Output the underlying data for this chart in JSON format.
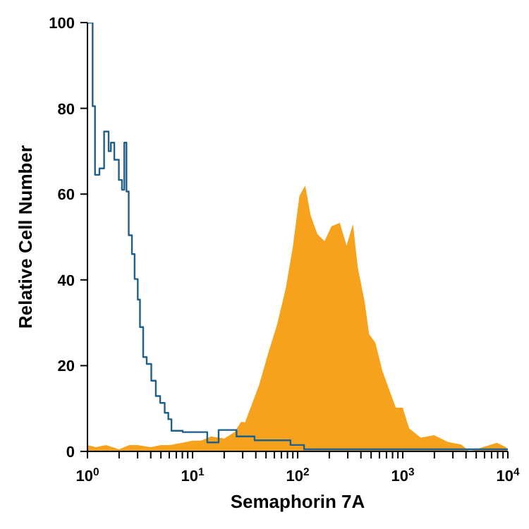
{
  "chart_data": {
    "type": "area",
    "xlabel": "Semaphorin 7A",
    "ylabel": "Relative Cell Number",
    "log": "x",
    "marker": "none",
    "xlim": [
      1,
      10000
    ],
    "xticks": [
      {
        "value": 1,
        "label": "10$^{0}$"
      },
      {
        "value": 2,
        "label": null
      },
      {
        "value": 3,
        "label": null
      },
      {
        "value": 4,
        "label": null
      },
      {
        "value": 5,
        "label": null
      },
      {
        "value": 6,
        "label": null
      },
      {
        "value": 7,
        "label": null
      },
      {
        "value": 8,
        "label": null
      },
      {
        "value": 9,
        "label": null
      },
      {
        "value": 10,
        "label": "10$^{1}$"
      },
      {
        "value": 20,
        "label": null
      },
      {
        "value": 30,
        "label": null
      },
      {
        "value": 40,
        "label": null
      },
      {
        "value": 50,
        "label": null
      },
      {
        "value": 60,
        "label": null
      },
      {
        "value": 70,
        "label": null
      },
      {
        "value": 80,
        "label": null
      },
      {
        "value": 90,
        "label": null
      },
      {
        "value": 100,
        "label": "10$^{2}$"
      },
      {
        "value": 200,
        "label": null
      },
      {
        "value": 300,
        "label": null
      },
      {
        "value": 400,
        "label": null
      },
      {
        "value": 500,
        "label": null
      },
      {
        "value": 600,
        "label": null
      },
      {
        "value": 700,
        "label": null
      },
      {
        "value": 800,
        "label": null
      },
      {
        "value": 900,
        "label": null
      },
      {
        "value": 1000,
        "label": "10$^{3}$"
      },
      {
        "value": 2000,
        "label": null
      },
      {
        "value": 3000,
        "label": null
      },
      {
        "value": 4000,
        "label": null
      },
      {
        "value": 5000,
        "label": null
      },
      {
        "value": 6000,
        "label": null
      },
      {
        "value": 7000,
        "label": null
      },
      {
        "value": 8000,
        "label": null
      },
      {
        "value": 9000,
        "label": null
      },
      {
        "value": 10000,
        "label": "10$^{4}$"
      }
    ],
    "ylim": [
      0,
      100
    ],
    "yticks": [
      0,
      20,
      40,
      60,
      80,
      100
    ],
    "series": [
      {
        "color": "#f7a21d",
        "x": [
          1,
          1.2,
          1.5,
          2,
          2.5,
          3,
          4,
          5,
          6,
          8,
          10,
          12,
          15,
          20,
          25,
          29,
          31.6,
          43,
          52,
          63.6,
          77,
          90,
          104,
          118,
          133,
          154,
          180,
          210,
          252,
          292,
          336,
          373,
          435,
          478,
          550,
          640,
          740,
          860,
          1000,
          1150,
          1480,
          1990,
          2680,
          3600,
          4320,
          7870,
          9600,
          10000
        ],
        "values": [
          1.5,
          1,
          1.5,
          0.5,
          1.5,
          1.5,
          1,
          1.5,
          1.5,
          2,
          2.5,
          2.5,
          3.5,
          3,
          4.5,
          6.9,
          6.8,
          15.5,
          22.6,
          29.5,
          38,
          47.7,
          59.6,
          62,
          55,
          50.7,
          49,
          52.5,
          53.3,
          48,
          53,
          43,
          34.8,
          27.4,
          25.3,
          18.8,
          14.5,
          10.2,
          10.2,
          5.4,
          3.2,
          3.8,
          2.2,
          1.6,
          0,
          2,
          1,
          0
        ]
      },
      {
        "type": "step",
        "color": "#1f5f8b",
        "x": [
          1,
          1.07,
          1.12,
          1.18,
          1.3,
          1.44,
          1.59,
          1.67,
          1.8,
          1.99,
          2.13,
          2.24,
          2.35,
          2.47,
          2.65,
          2.81,
          3.01,
          3.16,
          3.39,
          3.66,
          4.05,
          4.47,
          4.92,
          5.43,
          5.88,
          6.3,
          8.06,
          11.9,
          13.8,
          17.7,
          26.2,
          38.9,
          85.5,
          115,
          10000
        ],
        "values": [
          100,
          100,
          80.5,
          64.5,
          66,
          74.6,
          70,
          72,
          68,
          63.3,
          61,
          72,
          60.6,
          50.4,
          46,
          40.2,
          35.4,
          29,
          22,
          20.4,
          16.5,
          12.9,
          11.3,
          9,
          7.5,
          4.8,
          4.5,
          4.5,
          2.1,
          5,
          3.5,
          2.6,
          1.5,
          0.5,
          0.5
        ]
      }
    ]
  }
}
